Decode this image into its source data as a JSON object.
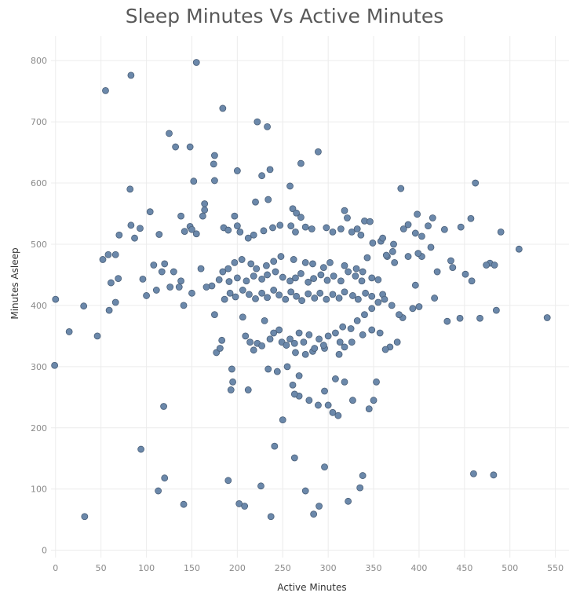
{
  "chart_data": {
    "type": "scatter",
    "title": "Sleep Minutes Vs Active Minutes",
    "xlabel": "Active Minutes",
    "ylabel": "Minutes Asleep",
    "xlim": [
      -5,
      565
    ],
    "ylim": [
      -12,
      840
    ],
    "xticks": [
      0,
      50,
      100,
      150,
      200,
      250,
      300,
      350,
      400,
      450,
      500,
      550
    ],
    "yticks": [
      0,
      100,
      200,
      300,
      400,
      500,
      600,
      700,
      800
    ],
    "grid": true,
    "marker_color": "#6b88aa",
    "marker_edge": "#4a5f78",
    "points": [
      [
        155,
        797
      ],
      [
        83,
        776
      ],
      [
        55,
        751
      ],
      [
        184,
        722
      ],
      [
        222,
        700
      ],
      [
        233,
        692
      ],
      [
        125,
        681
      ],
      [
        132,
        659
      ],
      [
        148,
        659
      ],
      [
        289,
        651
      ],
      [
        175,
        645
      ],
      [
        174,
        631
      ],
      [
        270,
        632
      ],
      [
        236,
        622
      ],
      [
        200,
        620
      ],
      [
        227,
        612
      ],
      [
        152,
        603
      ],
      [
        175,
        604
      ],
      [
        462,
        600
      ],
      [
        258,
        595
      ],
      [
        82,
        590
      ],
      [
        380,
        591
      ],
      [
        164,
        566
      ],
      [
        220,
        569
      ],
      [
        234,
        573
      ],
      [
        164,
        556
      ],
      [
        261,
        558
      ],
      [
        318,
        555
      ],
      [
        162,
        546
      ],
      [
        138,
        546
      ],
      [
        197,
        546
      ],
      [
        265,
        551
      ],
      [
        270,
        544
      ],
      [
        321,
        543
      ],
      [
        340,
        538
      ],
      [
        346,
        537
      ],
      [
        398,
        549
      ],
      [
        415,
        543
      ],
      [
        457,
        542
      ],
      [
        83,
        531
      ],
      [
        93,
        526
      ],
      [
        104,
        553
      ],
      [
        70,
        515
      ],
      [
        58,
        483
      ],
      [
        52,
        475
      ],
      [
        66,
        483
      ],
      [
        87,
        510
      ],
      [
        114,
        516
      ],
      [
        142,
        521
      ],
      [
        148,
        529
      ],
      [
        150,
        524
      ],
      [
        155,
        517
      ],
      [
        185,
        527
      ],
      [
        190,
        523
      ],
      [
        200,
        530
      ],
      [
        203,
        520
      ],
      [
        212,
        510
      ],
      [
        218,
        515
      ],
      [
        229,
        522
      ],
      [
        239,
        527
      ],
      [
        247,
        531
      ],
      [
        259,
        530
      ],
      [
        264,
        520
      ],
      [
        275,
        528
      ],
      [
        282,
        525
      ],
      [
        298,
        527
      ],
      [
        305,
        520
      ],
      [
        314,
        525
      ],
      [
        326,
        520
      ],
      [
        332,
        525
      ],
      [
        336,
        515
      ],
      [
        349,
        502
      ],
      [
        358,
        505
      ],
      [
        360,
        510
      ],
      [
        372,
        500
      ],
      [
        383,
        525
      ],
      [
        388,
        532
      ],
      [
        396,
        518
      ],
      [
        403,
        513
      ],
      [
        410,
        530
      ],
      [
        428,
        524
      ],
      [
        446,
        528
      ],
      [
        490,
        520
      ],
      [
        510,
        492
      ],
      [
        478,
        469
      ],
      [
        474,
        466
      ],
      [
        483,
        466
      ],
      [
        435,
        473
      ],
      [
        403,
        480
      ],
      [
        399,
        485
      ],
      [
        388,
        480
      ],
      [
        373,
        470
      ],
      [
        365,
        480
      ],
      [
        343,
        478
      ],
      [
        338,
        455
      ],
      [
        331,
        460
      ],
      [
        318,
        465
      ],
      [
        302,
        470
      ],
      [
        295,
        462
      ],
      [
        283,
        468
      ],
      [
        275,
        470
      ],
      [
        262,
        475
      ],
      [
        248,
        480
      ],
      [
        240,
        472
      ],
      [
        232,
        465
      ],
      [
        221,
        460
      ],
      [
        215,
        468
      ],
      [
        205,
        475
      ],
      [
        197,
        470
      ],
      [
        190,
        460
      ],
      [
        184,
        455
      ],
      [
        180,
        442
      ],
      [
        191,
        439
      ],
      [
        200,
        445
      ],
      [
        210,
        440
      ],
      [
        218,
        448
      ],
      [
        227,
        443
      ],
      [
        233,
        450
      ],
      [
        242,
        455
      ],
      [
        250,
        446
      ],
      [
        258,
        440
      ],
      [
        264,
        445
      ],
      [
        270,
        452
      ],
      [
        278,
        438
      ],
      [
        284,
        444
      ],
      [
        292,
        450
      ],
      [
        299,
        441
      ],
      [
        306,
        448
      ],
      [
        314,
        440
      ],
      [
        322,
        455
      ],
      [
        330,
        448
      ],
      [
        337,
        440
      ],
      [
        348,
        445
      ],
      [
        355,
        442
      ],
      [
        360,
        418
      ],
      [
        348,
        415
      ],
      [
        341,
        420
      ],
      [
        333,
        410
      ],
      [
        327,
        416
      ],
      [
        318,
        422
      ],
      [
        312,
        412
      ],
      [
        305,
        418
      ],
      [
        298,
        410
      ],
      [
        291,
        420
      ],
      [
        285,
        412
      ],
      [
        278,
        419
      ],
      [
        271,
        408
      ],
      [
        265,
        415
      ],
      [
        259,
        422
      ],
      [
        253,
        410
      ],
      [
        246,
        417
      ],
      [
        240,
        425
      ],
      [
        233,
        413
      ],
      [
        227,
        420
      ],
      [
        220,
        411
      ],
      [
        213,
        418
      ],
      [
        206,
        425
      ],
      [
        198,
        414
      ],
      [
        192,
        420
      ],
      [
        186,
        410
      ],
      [
        172,
        432
      ],
      [
        160,
        460
      ],
      [
        138,
        440
      ],
      [
        130,
        455
      ],
      [
        120,
        468
      ],
      [
        108,
        466
      ],
      [
        117,
        455
      ],
      [
        111,
        425
      ],
      [
        100,
        416
      ],
      [
        96,
        443
      ],
      [
        69,
        444
      ],
      [
        66,
        405
      ],
      [
        61,
        437
      ],
      [
        59,
        392
      ],
      [
        46,
        350
      ],
      [
        31,
        399
      ],
      [
        15,
        357
      ],
      [
        0,
        410
      ],
      [
        -1,
        302
      ],
      [
        32,
        55
      ],
      [
        94,
        165
      ],
      [
        113,
        97
      ],
      [
        119,
        235
      ],
      [
        120,
        118
      ],
      [
        141,
        75
      ],
      [
        190,
        114
      ],
      [
        202,
        76
      ],
      [
        208,
        72
      ],
      [
        226,
        105
      ],
      [
        237,
        55
      ],
      [
        241,
        170
      ],
      [
        263,
        151
      ],
      [
        275,
        97
      ],
      [
        284,
        59
      ],
      [
        290,
        72
      ],
      [
        296,
        136
      ],
      [
        300,
        237
      ],
      [
        305,
        225
      ],
      [
        311,
        220
      ],
      [
        322,
        80
      ],
      [
        335,
        102
      ],
      [
        338,
        122
      ],
      [
        345,
        231
      ],
      [
        350,
        245
      ],
      [
        353,
        275
      ],
      [
        327,
        245
      ],
      [
        318,
        275
      ],
      [
        308,
        280
      ],
      [
        296,
        260
      ],
      [
        289,
        237
      ],
      [
        279,
        245
      ],
      [
        268,
        252
      ],
      [
        263,
        255
      ],
      [
        261,
        270
      ],
      [
        268,
        285
      ],
      [
        250,
        213
      ],
      [
        244,
        292
      ],
      [
        234,
        296
      ],
      [
        255,
        300
      ],
      [
        264,
        323
      ],
      [
        275,
        320
      ],
      [
        283,
        325
      ],
      [
        296,
        330
      ],
      [
        312,
        320
      ],
      [
        318,
        332
      ],
      [
        326,
        340
      ],
      [
        338,
        352
      ],
      [
        348,
        360
      ],
      [
        357,
        355
      ],
      [
        368,
        332
      ],
      [
        363,
        328
      ],
      [
        376,
        340
      ],
      [
        382,
        380
      ],
      [
        393,
        395
      ],
      [
        400,
        398
      ],
      [
        417,
        412
      ],
      [
        431,
        374
      ],
      [
        445,
        379
      ],
      [
        467,
        379
      ],
      [
        485,
        392
      ],
      [
        541,
        380
      ],
      [
        460,
        125
      ],
      [
        482,
        123
      ],
      [
        126,
        430
      ],
      [
        136,
        430
      ],
      [
        141,
        400
      ],
      [
        150,
        420
      ],
      [
        166,
        430
      ],
      [
        175,
        385
      ],
      [
        183,
        343
      ],
      [
        177,
        323
      ],
      [
        181,
        330
      ],
      [
        193,
        262
      ],
      [
        194,
        296
      ],
      [
        195,
        275
      ],
      [
        206,
        381
      ],
      [
        209,
        350
      ],
      [
        212,
        262
      ],
      [
        214,
        340
      ],
      [
        218,
        327
      ],
      [
        222,
        338
      ],
      [
        227,
        334
      ],
      [
        230,
        375
      ],
      [
        236,
        345
      ],
      [
        240,
        355
      ],
      [
        246,
        360
      ],
      [
        249,
        340
      ],
      [
        254,
        335
      ],
      [
        258,
        345
      ],
      [
        263,
        338
      ],
      [
        268,
        355
      ],
      [
        273,
        340
      ],
      [
        279,
        352
      ],
      [
        285,
        330
      ],
      [
        290,
        345
      ],
      [
        295,
        335
      ],
      [
        300,
        350
      ],
      [
        308,
        355
      ],
      [
        313,
        340
      ],
      [
        316,
        365
      ],
      [
        325,
        362
      ],
      [
        332,
        375
      ],
      [
        340,
        385
      ],
      [
        348,
        395
      ],
      [
        355,
        405
      ],
      [
        362,
        410
      ],
      [
        370,
        400
      ],
      [
        378,
        385
      ],
      [
        364,
        482
      ],
      [
        396,
        433
      ],
      [
        371,
        488
      ],
      [
        413,
        495
      ],
      [
        420,
        455
      ],
      [
        437,
        462
      ],
      [
        451,
        451
      ],
      [
        458,
        440
      ]
    ]
  }
}
